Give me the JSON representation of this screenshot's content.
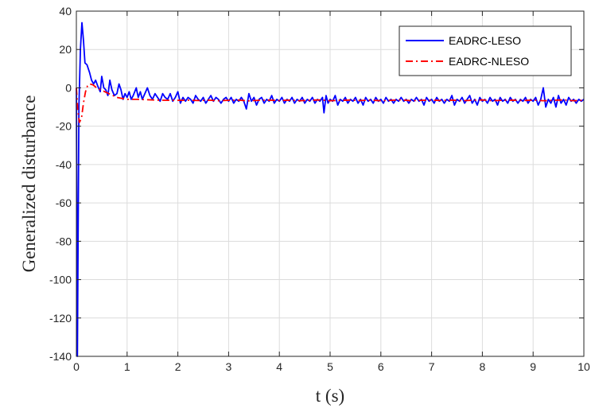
{
  "chart_data": {
    "type": "line",
    "title": "",
    "xlabel": "t (s)",
    "ylabel": "Generalized disturbance",
    "xlim": [
      0,
      10
    ],
    "ylim": [
      -140,
      40
    ],
    "xticks": [
      0,
      1,
      2,
      3,
      4,
      5,
      6,
      7,
      8,
      9,
      10
    ],
    "xtick_labels": [
      "0",
      "1",
      "2",
      "3",
      "4",
      "5",
      "6",
      "7",
      "8",
      "9",
      "10"
    ],
    "yticks": [
      40,
      20,
      0,
      -20,
      -40,
      -60,
      -80,
      -100,
      -120,
      -140
    ],
    "ytick_labels": [
      "40",
      "20",
      "0",
      "-20",
      "-40",
      "-60",
      "-80",
      "-100",
      "-120",
      "-140"
    ],
    "grid": true,
    "legend_position": "top-right",
    "series": [
      {
        "name": "EADRC-LESO",
        "color": "#0000ff",
        "dash": "solid",
        "points": [
          [
            0,
            0
          ],
          [
            0.02,
            -140
          ],
          [
            0.05,
            -10
          ],
          [
            0.08,
            20
          ],
          [
            0.11,
            34
          ],
          [
            0.14,
            25
          ],
          [
            0.17,
            13
          ],
          [
            0.21,
            12
          ],
          [
            0.26,
            8
          ],
          [
            0.3,
            4
          ],
          [
            0.34,
            2
          ],
          [
            0.38,
            4
          ],
          [
            0.42,
            1
          ],
          [
            0.47,
            -2
          ],
          [
            0.5,
            6
          ],
          [
            0.54,
            0
          ],
          [
            0.58,
            -1
          ],
          [
            0.62,
            -4
          ],
          [
            0.66,
            4
          ],
          [
            0.7,
            -1
          ],
          [
            0.75,
            -4
          ],
          [
            0.8,
            -3
          ],
          [
            0.84,
            2
          ],
          [
            0.88,
            -1
          ],
          [
            0.92,
            -6
          ],
          [
            0.96,
            -3
          ],
          [
            1.0,
            -5
          ],
          [
            1.04,
            -2
          ],
          [
            1.08,
            -6
          ],
          [
            1.12,
            -4
          ],
          [
            1.18,
            0
          ],
          [
            1.22,
            -5
          ],
          [
            1.26,
            -2
          ],
          [
            1.3,
            -6
          ],
          [
            1.35,
            -3
          ],
          [
            1.4,
            0
          ],
          [
            1.45,
            -4
          ],
          [
            1.5,
            -6
          ],
          [
            1.55,
            -3
          ],
          [
            1.6,
            -5
          ],
          [
            1.65,
            -7
          ],
          [
            1.7,
            -3
          ],
          [
            1.75,
            -5
          ],
          [
            1.8,
            -6
          ],
          [
            1.85,
            -3
          ],
          [
            1.9,
            -7
          ],
          [
            1.95,
            -5
          ],
          [
            2.0,
            -2
          ],
          [
            2.05,
            -8
          ],
          [
            2.1,
            -5
          ],
          [
            2.15,
            -7
          ],
          [
            2.2,
            -5
          ],
          [
            2.25,
            -6
          ],
          [
            2.3,
            -8
          ],
          [
            2.35,
            -4
          ],
          [
            2.4,
            -6
          ],
          [
            2.45,
            -7
          ],
          [
            2.5,
            -5
          ],
          [
            2.55,
            -8
          ],
          [
            2.6,
            -6
          ],
          [
            2.65,
            -4
          ],
          [
            2.7,
            -7
          ],
          [
            2.75,
            -5
          ],
          [
            2.8,
            -6
          ],
          [
            2.85,
            -8
          ],
          [
            2.9,
            -6
          ],
          [
            2.95,
            -5
          ],
          [
            3.0,
            -7
          ],
          [
            3.05,
            -5
          ],
          [
            3.1,
            -8
          ],
          [
            3.15,
            -6
          ],
          [
            3.2,
            -7
          ],
          [
            3.25,
            -5
          ],
          [
            3.3,
            -7
          ],
          [
            3.35,
            -11
          ],
          [
            3.4,
            -3
          ],
          [
            3.45,
            -7
          ],
          [
            3.5,
            -5
          ],
          [
            3.55,
            -9
          ],
          [
            3.6,
            -6
          ],
          [
            3.65,
            -5
          ],
          [
            3.7,
            -8
          ],
          [
            3.75,
            -6
          ],
          [
            3.8,
            -7
          ],
          [
            3.85,
            -4
          ],
          [
            3.9,
            -8
          ],
          [
            3.95,
            -6
          ],
          [
            4.0,
            -7
          ],
          [
            4.05,
            -5
          ],
          [
            4.1,
            -8
          ],
          [
            4.15,
            -6
          ],
          [
            4.2,
            -7
          ],
          [
            4.25,
            -5
          ],
          [
            4.3,
            -8
          ],
          [
            4.35,
            -6
          ],
          [
            4.4,
            -7
          ],
          [
            4.45,
            -5
          ],
          [
            4.5,
            -8
          ],
          [
            4.55,
            -6
          ],
          [
            4.6,
            -7
          ],
          [
            4.65,
            -5
          ],
          [
            4.7,
            -8
          ],
          [
            4.75,
            -6
          ],
          [
            4.8,
            -7
          ],
          [
            4.85,
            -5
          ],
          [
            4.88,
            -13
          ],
          [
            4.92,
            -4
          ],
          [
            4.96,
            -8
          ],
          [
            5.0,
            -6
          ],
          [
            5.05,
            -7
          ],
          [
            5.1,
            -4
          ],
          [
            5.15,
            -9
          ],
          [
            5.2,
            -6
          ],
          [
            5.25,
            -7
          ],
          [
            5.3,
            -5
          ],
          [
            5.35,
            -8
          ],
          [
            5.4,
            -6
          ],
          [
            5.45,
            -7
          ],
          [
            5.5,
            -5
          ],
          [
            5.55,
            -8
          ],
          [
            5.6,
            -6
          ],
          [
            5.65,
            -9
          ],
          [
            5.7,
            -5
          ],
          [
            5.75,
            -7
          ],
          [
            5.8,
            -6
          ],
          [
            5.85,
            -8
          ],
          [
            5.9,
            -5
          ],
          [
            5.95,
            -7
          ],
          [
            6.0,
            -6
          ],
          [
            6.05,
            -8
          ],
          [
            6.1,
            -5
          ],
          [
            6.15,
            -7
          ],
          [
            6.2,
            -6
          ],
          [
            6.25,
            -8
          ],
          [
            6.3,
            -6
          ],
          [
            6.35,
            -7
          ],
          [
            6.4,
            -5
          ],
          [
            6.45,
            -7
          ],
          [
            6.5,
            -6
          ],
          [
            6.55,
            -8
          ],
          [
            6.6,
            -6
          ],
          [
            6.65,
            -7
          ],
          [
            6.7,
            -5
          ],
          [
            6.75,
            -7
          ],
          [
            6.8,
            -6
          ],
          [
            6.85,
            -9
          ],
          [
            6.9,
            -5
          ],
          [
            6.95,
            -7
          ],
          [
            7.0,
            -6
          ],
          [
            7.05,
            -8
          ],
          [
            7.1,
            -5
          ],
          [
            7.15,
            -7
          ],
          [
            7.2,
            -6
          ],
          [
            7.25,
            -8
          ],
          [
            7.3,
            -6
          ],
          [
            7.35,
            -7
          ],
          [
            7.4,
            -4
          ],
          [
            7.45,
            -9
          ],
          [
            7.5,
            -6
          ],
          [
            7.55,
            -7
          ],
          [
            7.6,
            -5
          ],
          [
            7.65,
            -8
          ],
          [
            7.7,
            -6
          ],
          [
            7.75,
            -4
          ],
          [
            7.8,
            -8
          ],
          [
            7.85,
            -6
          ],
          [
            7.9,
            -9
          ],
          [
            7.95,
            -5
          ],
          [
            8.0,
            -7
          ],
          [
            8.05,
            -6
          ],
          [
            8.1,
            -8
          ],
          [
            8.15,
            -5
          ],
          [
            8.2,
            -7
          ],
          [
            8.25,
            -6
          ],
          [
            8.3,
            -9
          ],
          [
            8.35,
            -5
          ],
          [
            8.4,
            -7
          ],
          [
            8.45,
            -6
          ],
          [
            8.5,
            -8
          ],
          [
            8.55,
            -5
          ],
          [
            8.6,
            -7
          ],
          [
            8.65,
            -6
          ],
          [
            8.7,
            -8
          ],
          [
            8.75,
            -6
          ],
          [
            8.8,
            -7
          ],
          [
            8.85,
            -5
          ],
          [
            8.9,
            -8
          ],
          [
            8.95,
            -6
          ],
          [
            9.0,
            -7
          ],
          [
            9.05,
            -5
          ],
          [
            9.1,
            -9
          ],
          [
            9.15,
            -6
          ],
          [
            9.2,
            0
          ],
          [
            9.25,
            -10
          ],
          [
            9.3,
            -6
          ],
          [
            9.35,
            -8
          ],
          [
            9.4,
            -5
          ],
          [
            9.45,
            -10
          ],
          [
            9.5,
            -4
          ],
          [
            9.55,
            -8
          ],
          [
            9.6,
            -6
          ],
          [
            9.65,
            -9
          ],
          [
            9.7,
            -5
          ],
          [
            9.75,
            -7
          ],
          [
            9.8,
            -6
          ],
          [
            9.85,
            -8
          ],
          [
            9.9,
            -6
          ],
          [
            9.95,
            -7
          ],
          [
            10.0,
            -6
          ]
        ]
      },
      {
        "name": "EADRC-NLESO",
        "color": "#ff0000",
        "dash": "dashdot",
        "points": [
          [
            0,
            0
          ],
          [
            0.03,
            -12
          ],
          [
            0.06,
            -18
          ],
          [
            0.1,
            -16
          ],
          [
            0.14,
            -8
          ],
          [
            0.18,
            -2
          ],
          [
            0.22,
            1
          ],
          [
            0.27,
            2
          ],
          [
            0.33,
            1.5
          ],
          [
            0.4,
            0
          ],
          [
            0.48,
            -1
          ],
          [
            0.56,
            -2
          ],
          [
            0.64,
            -3
          ],
          [
            0.72,
            -4
          ],
          [
            0.8,
            -5
          ],
          [
            0.9,
            -5.5
          ],
          [
            1.0,
            -6
          ],
          [
            1.2,
            -6
          ],
          [
            1.4,
            -6.2
          ],
          [
            1.6,
            -6.4
          ],
          [
            1.8,
            -6.5
          ],
          [
            2.0,
            -6.5
          ],
          [
            2.2,
            -6.4
          ],
          [
            2.4,
            -6.6
          ],
          [
            2.6,
            -6.4
          ],
          [
            2.8,
            -6.7
          ],
          [
            3.0,
            -6.5
          ],
          [
            3.2,
            -6.4
          ],
          [
            3.4,
            -6.8
          ],
          [
            3.6,
            -6.5
          ],
          [
            3.8,
            -6.4
          ],
          [
            4.0,
            -6.6
          ],
          [
            4.2,
            -6.4
          ],
          [
            4.4,
            -6.7
          ],
          [
            4.6,
            -6.5
          ],
          [
            4.8,
            -6.3
          ],
          [
            5.0,
            -6.7
          ],
          [
            5.2,
            -6.5
          ],
          [
            5.4,
            -6.4
          ],
          [
            5.6,
            -6.6
          ],
          [
            5.8,
            -6.4
          ],
          [
            6.0,
            -6.7
          ],
          [
            6.2,
            -6.5
          ],
          [
            6.4,
            -6.3
          ],
          [
            6.6,
            -6.7
          ],
          [
            6.8,
            -6.5
          ],
          [
            7.0,
            -6.4
          ],
          [
            7.2,
            -6.6
          ],
          [
            7.4,
            -6.4
          ],
          [
            7.6,
            -6.7
          ],
          [
            7.8,
            -6.5
          ],
          [
            8.0,
            -6.3
          ],
          [
            8.2,
            -6.7
          ],
          [
            8.4,
            -6.5
          ],
          [
            8.6,
            -6.4
          ],
          [
            8.8,
            -6.6
          ],
          [
            9.0,
            -6.4
          ],
          [
            9.2,
            -6.7
          ],
          [
            9.4,
            -6.5
          ],
          [
            9.6,
            -6.3
          ],
          [
            9.8,
            -6.7
          ],
          [
            10.0,
            -6.5
          ]
        ]
      }
    ]
  }
}
